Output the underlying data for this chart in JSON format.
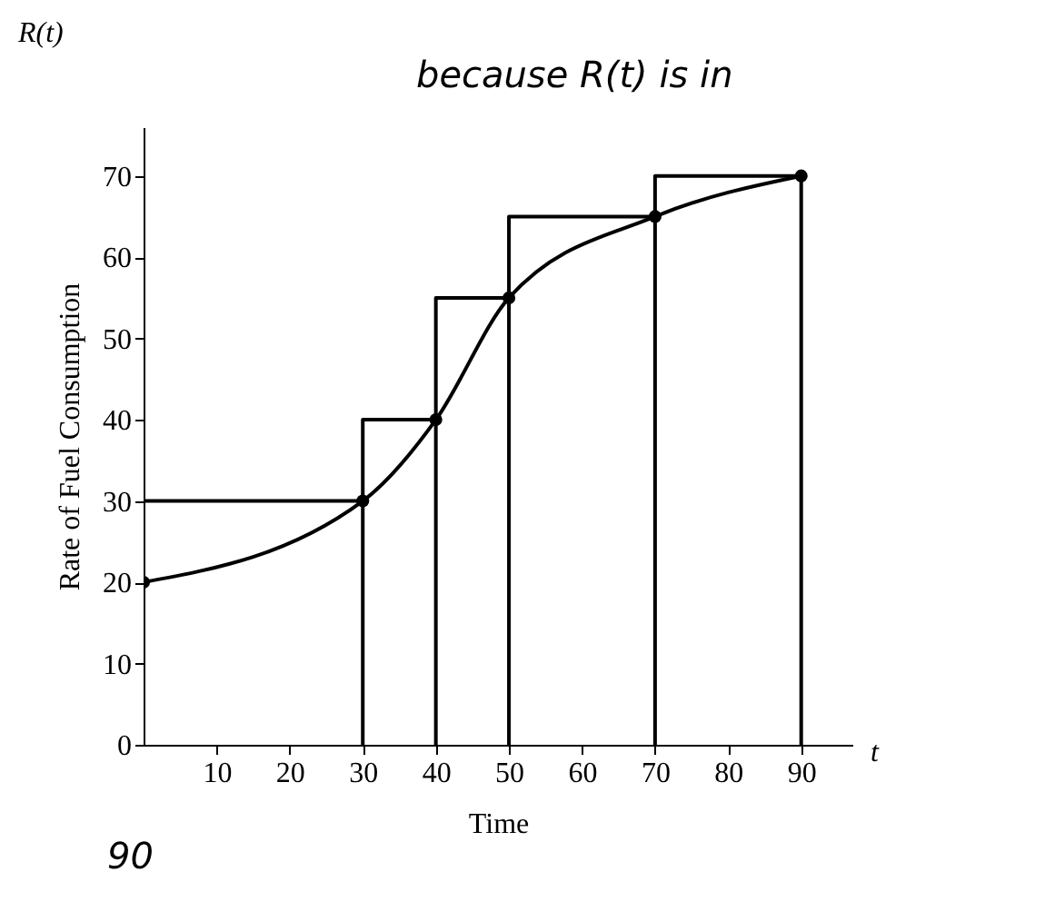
{
  "chart_data": {
    "type": "line",
    "title": "R(t)",
    "xlabel": "Time",
    "ylabel": "Rate of Fuel Consumption",
    "xlim": [
      0,
      97
    ],
    "xticks": [
      10,
      20,
      30,
      40,
      50,
      60,
      70,
      80,
      90
    ],
    "ylim": [
      0,
      76
    ],
    "yticks": [
      0,
      10,
      20,
      30,
      40,
      50,
      60,
      70
    ],
    "grid": false,
    "series": [
      {
        "color": "#000000",
        "marker": "circle",
        "x": [
          0,
          30,
          40,
          50,
          70,
          90
        ],
        "values": [
          20,
          30,
          40,
          55,
          65,
          70
        ]
      },
      {
        "color": "#000000",
        "marker": "none",
        "x": [
          0,
          30,
          30,
          30,
          40,
          40,
          40,
          50,
          50,
          50,
          70,
          70,
          70,
          90,
          90
        ],
        "values": [
          30,
          30,
          0,
          40,
          40,
          0,
          55,
          55,
          0,
          65,
          65,
          0,
          70,
          70,
          0
        ]
      }
    ],
    "annotations": [
      "t",
      "because R(t) is in",
      "90"
    ]
  }
}
